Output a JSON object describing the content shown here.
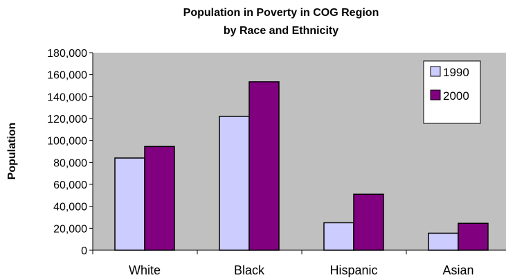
{
  "chart_data": {
    "type": "bar",
    "title": "Population in Poverty in COG Region",
    "subtitle": "by Race and Ethnicity",
    "xlabel": "",
    "ylabel": "Population",
    "categories": [
      "White",
      "Black",
      "Hispanic",
      "Asian"
    ],
    "series": [
      {
        "name": "1990",
        "values": [
          84000,
          122000,
          25000,
          15500
        ],
        "color": "#ccccff"
      },
      {
        "name": "2000",
        "values": [
          94500,
          153500,
          51000,
          24500
        ],
        "color": "#800080"
      }
    ],
    "ylim": [
      0,
      180000
    ],
    "yticks": [
      "0",
      "20,000",
      "40,000",
      "60,000",
      "80,000",
      "100,000",
      "120,000",
      "140,000",
      "160,000",
      "180,000"
    ],
    "grid": false,
    "legend_position": "top-right",
    "plot_background": "#c0c0c0"
  }
}
